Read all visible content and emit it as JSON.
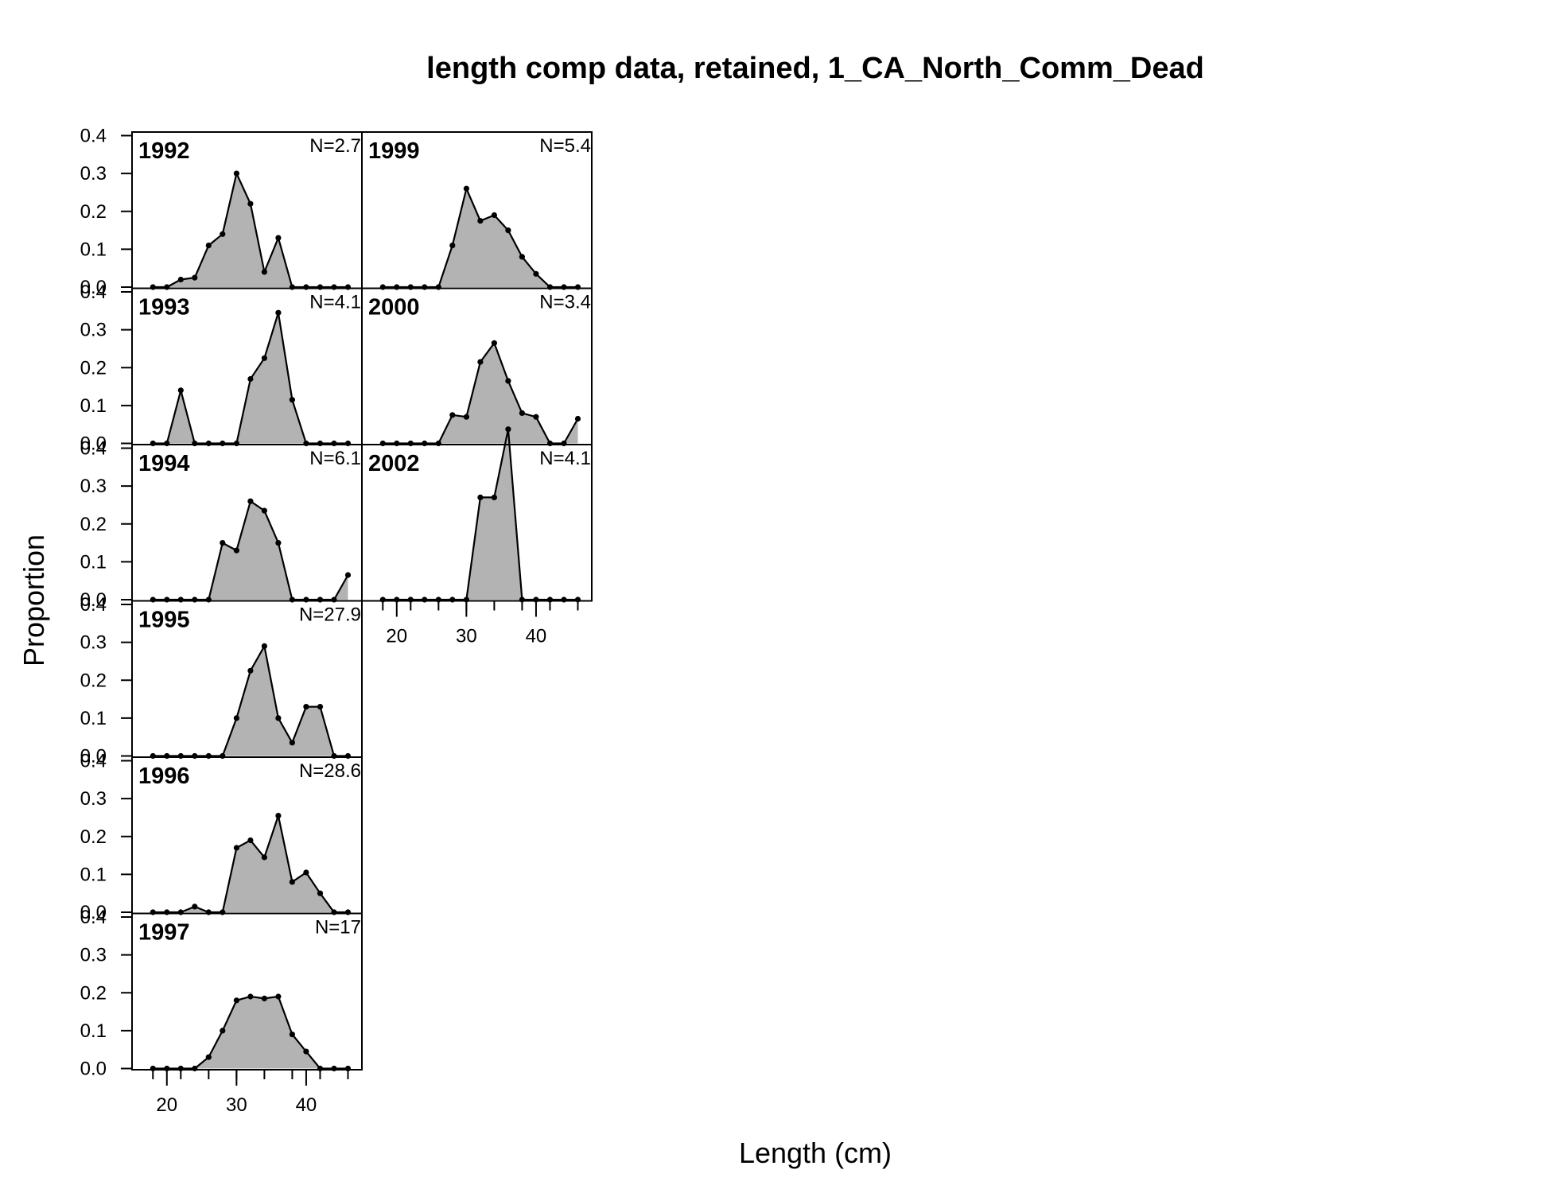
{
  "chart_data": {
    "type": "area",
    "title": "length comp data, retained, 1_CA_North_Comm_Dead",
    "xlabel": "Length (cm)",
    "ylabel": "Proportion",
    "x": [
      18,
      20,
      22,
      24,
      26,
      28,
      30,
      32,
      34,
      36,
      38,
      40,
      42,
      44,
      46
    ],
    "xticks": [
      "20",
      "30",
      "40"
    ],
    "yticks": [
      "0.0",
      "0.1",
      "0.2",
      "0.3",
      "0.4"
    ],
    "ylim": [
      0,
      0.4
    ],
    "xlim": [
      15,
      48
    ],
    "fill_color": "#b3b3b3",
    "line_color": "#000000",
    "panels": [
      {
        "year": "1992",
        "n_label": "N=2.7",
        "values": [
          0,
          0,
          0.02,
          0.025,
          0.11,
          0.14,
          0.3,
          0.22,
          0.04,
          0.13,
          0,
          0,
          0,
          0,
          0
        ]
      },
      {
        "year": "1993",
        "n_label": "N=4.1",
        "values": [
          0,
          0,
          0.14,
          0,
          0,
          0,
          0,
          0.17,
          0.225,
          0.345,
          0.115,
          0,
          0,
          0,
          0
        ]
      },
      {
        "year": "1994",
        "n_label": "N=6.1",
        "values": [
          0,
          0,
          0,
          0,
          0,
          0.15,
          0.13,
          0.26,
          0.235,
          0.15,
          0,
          0,
          0,
          0,
          0.065
        ]
      },
      {
        "year": "1995",
        "n_label": "N=27.9",
        "values": [
          0,
          0,
          0,
          0,
          0,
          0,
          0.1,
          0.225,
          0.29,
          0.1,
          0.035,
          0.13,
          0.13,
          0,
          0
        ]
      },
      {
        "year": "1996",
        "n_label": "N=28.6",
        "values": [
          0,
          0,
          0,
          0.015,
          0,
          0,
          0.17,
          0.19,
          0.145,
          0.255,
          0.08,
          0.105,
          0.05,
          0,
          0
        ]
      },
      {
        "year": "1997",
        "n_label": "N=17",
        "values": [
          0,
          0,
          0,
          0,
          0.03,
          0.1,
          0.18,
          0.19,
          0.185,
          0.19,
          0.09,
          0.045,
          0,
          0,
          0
        ]
      },
      {
        "year": "1999",
        "n_label": "N=5.4",
        "values": [
          0,
          0,
          0,
          0,
          0,
          0.11,
          0.26,
          0.175,
          0.19,
          0.15,
          0.08,
          0.035,
          0,
          0,
          0
        ]
      },
      {
        "year": "2000",
        "n_label": "N=3.4",
        "values": [
          0,
          0,
          0,
          0,
          0,
          0.075,
          0.07,
          0.215,
          0.265,
          0.165,
          0.08,
          0.07,
          0,
          0,
          0.065
        ]
      },
      {
        "year": "2002",
        "n_label": "N=4.1",
        "values": [
          0,
          0,
          0,
          0,
          0,
          0,
          0,
          0.27,
          0.27,
          0.45,
          0,
          0,
          0,
          0,
          0
        ]
      }
    ]
  }
}
